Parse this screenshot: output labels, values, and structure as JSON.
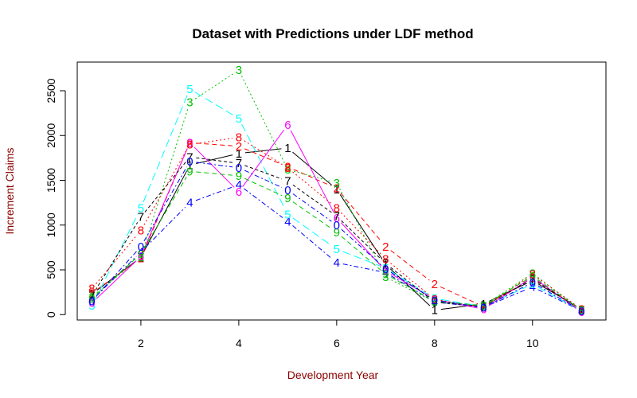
{
  "chart_data": {
    "type": "line",
    "title": "Dataset with Predictions under LDF method",
    "xlabel": "Development Year",
    "ylabel": "Increment Claims",
    "xlim": [
      0.7,
      11.5
    ],
    "ylim": [
      -60,
      2820
    ],
    "xticks": [
      2,
      4,
      6,
      8,
      10
    ],
    "yticks": [
      0,
      500,
      1000,
      1500,
      2000,
      2500
    ],
    "x": [
      1,
      2,
      3,
      4,
      5,
      6,
      7,
      8,
      9,
      10,
      11
    ],
    "series": [
      {
        "name": "1",
        "color": "#000000",
        "dash": "",
        "values": [
          230,
          640,
          1670,
          1800,
          1860,
          1400,
          560,
          50,
          120,
          380,
          60
        ]
      },
      {
        "name": "2",
        "color": "#ff0000",
        "dash": "6,4",
        "values": [
          240,
          630,
          1920,
          1880,
          1650,
          1410,
          760,
          340,
          90,
          410,
          50
        ]
      },
      {
        "name": "3",
        "color": "#00c000",
        "dash": "2,3",
        "values": [
          200,
          640,
          2370,
          2730,
          1620,
          1470,
          420,
          140,
          100,
          460,
          50
        ]
      },
      {
        "name": "4",
        "color": "#0000ff",
        "dash": "6,3,2,3",
        "values": [
          160,
          700,
          1250,
          1450,
          1040,
          580,
          470,
          140,
          80,
          310,
          40
        ]
      },
      {
        "name": "5",
        "color": "#00ffff",
        "dash": "10,5",
        "values": [
          100,
          1190,
          2520,
          2190,
          1120,
          730,
          520,
          180,
          90,
          340,
          40
        ]
      },
      {
        "name": "6",
        "color": "#ff00ff",
        "dash": "",
        "values": [
          130,
          650,
          1920,
          1370,
          2120,
          1080,
          490,
          170,
          60,
          420,
          30
        ]
      },
      {
        "name": "7",
        "color": "#000000",
        "dash": "4,3",
        "values": [
          210,
          1090,
          1760,
          1690,
          1490,
          1100,
          570,
          140,
          90,
          400,
          50
        ]
      },
      {
        "name": "8",
        "color": "#ff0000",
        "dash": "2,3",
        "values": [
          290,
          940,
          1900,
          1980,
          1640,
          1190,
          620,
          170,
          80,
          450,
          60
        ]
      },
      {
        "name": "9",
        "color": "#00c000",
        "dash": "6,4",
        "values": [
          180,
          680,
          1600,
          1550,
          1300,
          920,
          450,
          150,
          100,
          430,
          50
        ]
      },
      {
        "name": "0",
        "color": "#0000ff",
        "dash": "6,3,2,3",
        "values": [
          150,
          760,
          1710,
          1640,
          1390,
          1000,
          510,
          160,
          80,
          360,
          40
        ]
      }
    ]
  }
}
